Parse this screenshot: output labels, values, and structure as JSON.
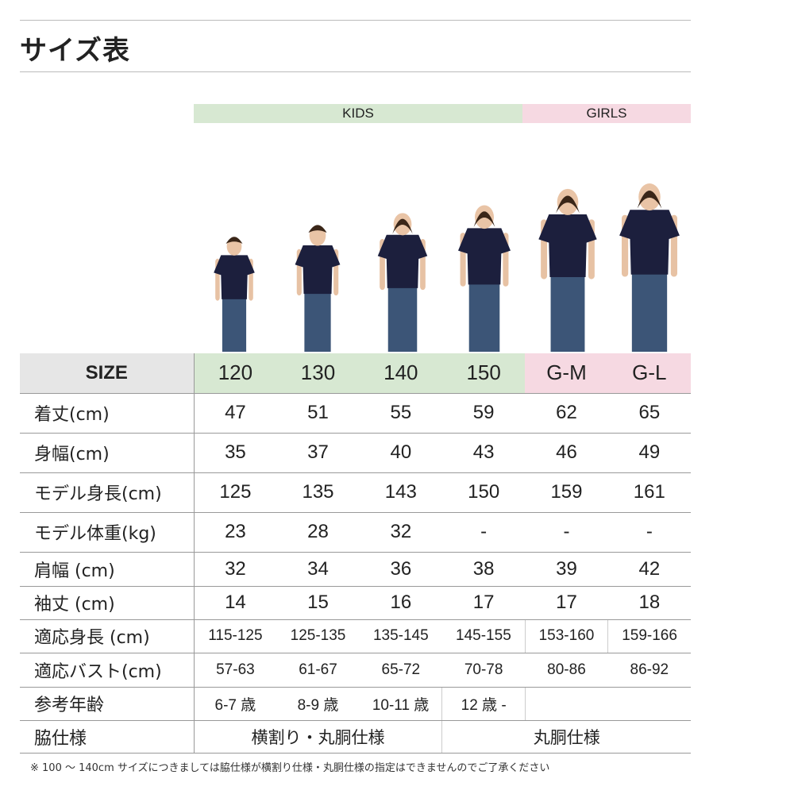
{
  "title": "サイズ表",
  "groups": {
    "kids": "KIDS",
    "girls": "GIRLS"
  },
  "colors": {
    "kids": "#d7e8d2",
    "girls": "#f6d9e2",
    "size_label_bg": "#e6e6e6",
    "shirt": "#1c1f3d",
    "jeans": "#3c5577"
  },
  "table": {
    "size_label": "SIZE",
    "sizes": [
      "120",
      "130",
      "140",
      "150",
      "G-M",
      "G-L"
    ],
    "rows": [
      {
        "label": "着丈(cm)",
        "values": [
          "47",
          "51",
          "55",
          "59",
          "62",
          "65"
        ]
      },
      {
        "label": "身幅(cm)",
        "values": [
          "35",
          "37",
          "40",
          "43",
          "46",
          "49"
        ]
      },
      {
        "label": "モデル身長(cm)",
        "values": [
          "125",
          "135",
          "143",
          "150",
          "159",
          "161"
        ]
      },
      {
        "label": "モデル体重(kg)",
        "values": [
          "23",
          "28",
          "32",
          "-",
          "-",
          "-"
        ]
      },
      {
        "label": "肩幅 (cm)",
        "values": [
          "32",
          "34",
          "36",
          "38",
          "39",
          "42"
        ]
      },
      {
        "label": "袖丈 (cm)",
        "values": [
          "14",
          "15",
          "16",
          "17",
          "17",
          "18"
        ]
      },
      {
        "label": "適応身長 (cm)",
        "values": [
          "115-125",
          "125-135",
          "135-145",
          "145-155",
          "153-160",
          "159-166"
        ]
      },
      {
        "label": "適応バスト(cm)",
        "values": [
          "57-63",
          "61-67",
          "65-72",
          "70-78",
          "80-86",
          "86-92"
        ]
      }
    ],
    "age": {
      "label": "参考年齢",
      "values": [
        "6-7 歳",
        "8-9 歳",
        "10-11 歳",
        "12 歳 -"
      ]
    },
    "side": {
      "label": "脇仕様",
      "values": [
        "横割り・丸胴仕様",
        "丸胴仕様"
      ]
    }
  },
  "note": "※ 100 ～ 140cm サイズにつきましては脇仕様が横割り仕様・丸胴仕様の指定はできませんのでご了承ください"
}
